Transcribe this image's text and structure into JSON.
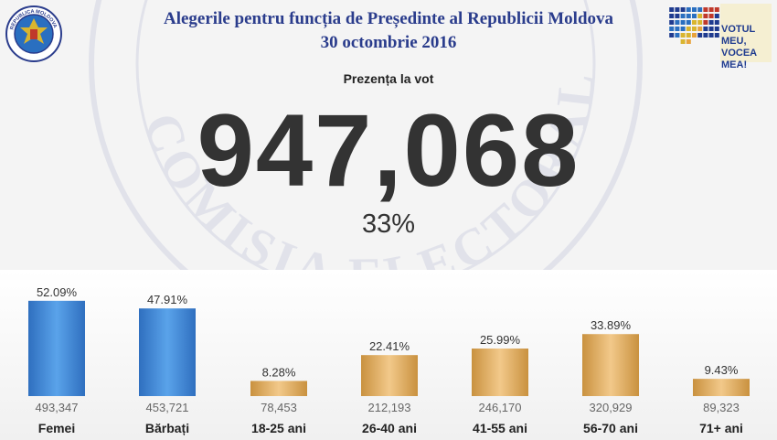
{
  "header": {
    "title_line1": "Alegerile pentru funcția de Președinte al Republicii Moldova",
    "title_line2": "30 octombrie 2016",
    "logo_text_line1": "VOTUL MEU,",
    "logo_text_line2": "VOCEA MEA!",
    "seal_text": "REPUBLICA MOLDOVA",
    "watermark_text": "COMISIA ELECTORALA CENTRALA"
  },
  "turnout": {
    "label": "Prezența la vot",
    "total": "947,068",
    "percent": "33%"
  },
  "colors": {
    "gender_bar": "#3d86d6",
    "age_bar": "#e1ad62",
    "title": "#2a3c8c",
    "text": "#333333"
  },
  "chart_data": {
    "type": "bar",
    "categories": [
      "Femei",
      "Bărbați",
      "18-25 ani",
      "26-40 ani",
      "41-55 ani",
      "56-70 ani",
      "71+ ani"
    ],
    "series": [
      {
        "values": [
          52.09,
          47.91,
          8.28,
          22.41,
          25.99,
          33.89,
          9.43
        ],
        "labels": [
          "52.09%",
          "47.91%",
          "8.28%",
          "22.41%",
          "25.99%",
          "33.89%",
          "9.43%"
        ]
      }
    ],
    "counts": [
      493347,
      453721,
      78453,
      212193,
      246170,
      320929,
      89323
    ],
    "count_labels": [
      "493,347",
      "453,721",
      "78,453",
      "212,193",
      "246,170",
      "320,929",
      "89,323"
    ],
    "groups": [
      "gender",
      "gender",
      "age",
      "age",
      "age",
      "age",
      "age"
    ],
    "unit": "%",
    "title": "",
    "xlabel": "",
    "ylabel": "",
    "ylim": [
      0,
      60
    ],
    "grid": false,
    "legend": "none"
  }
}
